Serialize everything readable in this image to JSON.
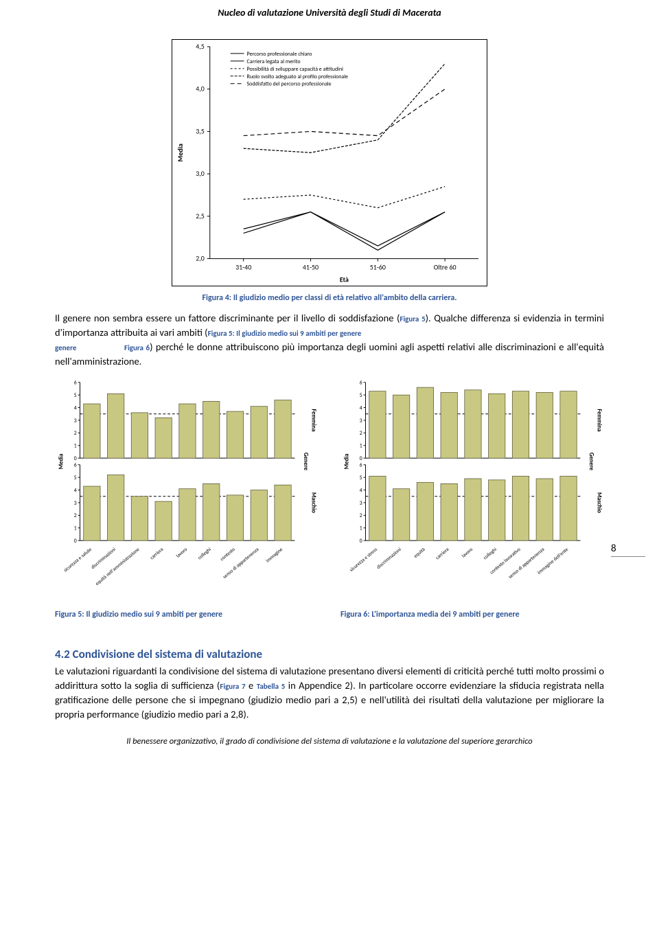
{
  "header": {
    "title": "Nucleo di valutazione Università degli Studi di Macerata"
  },
  "fig4": {
    "type": "line",
    "background_color": "#ffffff",
    "line_color": "#000000",
    "axis_color": "#000000",
    "tick_font": 10,
    "label_font": 10,
    "categories": [
      "31-40",
      "41-50",
      "51-60",
      "Oltre 60"
    ],
    "ylabel": "Media",
    "xlabel": "Età",
    "ylim": [
      2.0,
      4.5
    ],
    "ytick_step": 0.5,
    "legend": [
      {
        "label": "Percorso professionale chiaro",
        "dash": "none"
      },
      {
        "label": "Carriera legata al merito",
        "dash": "none"
      },
      {
        "label": "Possibilità di sviluppare capacità e attitudini",
        "dash": "3 3"
      },
      {
        "label": "Ruolo svolto adeguato al profilo professionale",
        "dash": "4 2"
      },
      {
        "label": "Soddisfatto del percorso professionale",
        "dash": "6 4"
      }
    ],
    "series": [
      {
        "values": [
          2.3,
          2.55,
          2.1,
          2.55
        ],
        "dash": "none"
      },
      {
        "values": [
          2.35,
          2.55,
          2.15,
          2.55
        ],
        "dash": "none"
      },
      {
        "values": [
          2.7,
          2.75,
          2.6,
          2.85
        ],
        "dash": "3 3"
      },
      {
        "values": [
          3.3,
          3.25,
          3.4,
          4.3
        ],
        "dash": "4 2"
      },
      {
        "values": [
          3.45,
          3.5,
          3.45,
          4.0
        ],
        "dash": "6 4"
      }
    ]
  },
  "fig4_caption": "Figura 4: Il giudizio medio per classi di età relativo all'ambito della carriera.",
  "para1": {
    "t1": "Il genere non sembra essere un fattore discriminante per il livello di soddisfazione (",
    "r1": "Figura 5",
    "t2": "). Qualche differenza si evidenzia in termini d'importanza attribuita ai vari ambiti (",
    "r2": "Figura 5: Il giudizio medio sui 9 ambiti per genere",
    "gap": "                ",
    "r3": "Figura 6",
    "t3": ") perché le donne attribuiscono più importanza degli uomini agli aspetti relativi alle discriminazioni e all'equità nell'amministrazione."
  },
  "fig5": {
    "type": "grouped-bar-panel",
    "bar_color": "#c8c882",
    "bar_stroke": "#5a5a3a",
    "axis_color": "#000000",
    "background": "#ffffff",
    "ref_dash": "4 3",
    "ylabel_main": "Media",
    "group_label": "Genere",
    "row_labels": [
      "Femmina",
      "Maschio"
    ],
    "categories": [
      "sicurezza e salute",
      "discriminazioni",
      "equità nell'amministrazione",
      "carriera",
      "lavoro",
      "colleghi",
      "contesto",
      "senso di appartenenza",
      "immagine"
    ],
    "ylim": [
      0,
      6
    ],
    "ytick_step": 1,
    "panels": [
      {
        "values": [
          4.3,
          5.1,
          3.6,
          3.2,
          4.3,
          4.5,
          3.7,
          4.1,
          4.6
        ],
        "ref": 3.5
      },
      {
        "values": [
          4.3,
          5.2,
          3.5,
          3.1,
          4.1,
          4.5,
          3.6,
          4.0,
          4.4
        ],
        "ref": 3.5
      }
    ]
  },
  "fig5_caption": "Figura 5: Il giudizio medio sui 9 ambiti per genere",
  "fig6": {
    "type": "grouped-bar-panel",
    "bar_color": "#c8c882",
    "bar_stroke": "#5a5a3a",
    "axis_color": "#000000",
    "background": "#ffffff",
    "ref_dash": "4 3",
    "ylabel_main": "Media",
    "group_label": "Genere",
    "row_labels": [
      "Femmina",
      "Maschio"
    ],
    "categories": [
      "sicurezza e stress",
      "discriminazioni",
      "equità",
      "carriera",
      "lavoro",
      "colleghi",
      "contesto lavorativo",
      "senso di appartenenza",
      "immagine dell'ente"
    ],
    "ylim": [
      0,
      6
    ],
    "ytick_step": 1,
    "panels": [
      {
        "values": [
          5.3,
          5.0,
          5.6,
          5.2,
          5.4,
          5.1,
          5.3,
          5.2,
          5.3
        ],
        "ref": 3.5
      },
      {
        "values": [
          5.1,
          4.1,
          4.6,
          4.5,
          4.9,
          4.8,
          5.1,
          4.9,
          5.1
        ],
        "ref": 3.5
      }
    ]
  },
  "fig6_caption": "Figura 6: L'importanza media dei 9 ambiti per genere",
  "page_number": "8",
  "section42": {
    "heading": "4.2 Condivisione del sistema di valutazione",
    "t1": "Le valutazioni riguardanti la condivisione del sistema di valutazione presentano diversi elementi di criticità perché tutti molto prossimi o addirittura sotto la soglia di sufficienza (",
    "r1": "Figura 7",
    "t2": " e ",
    "r2": "Tabella 5",
    "t3": " in Appendice 2). In particolare occorre evidenziare la sfiducia registrata nella gratificazione delle persone che si impegnano (giudizio medio pari a 2,5) e nell'utilità dei risultati della valutazione per migliorare la propria performance (giudizio medio pari a 2,8)."
  },
  "footer": {
    "text": "Il benessere organizzativo, il grado di condivisione del sistema di valutazione e la valutazione del superiore gerarchico"
  }
}
